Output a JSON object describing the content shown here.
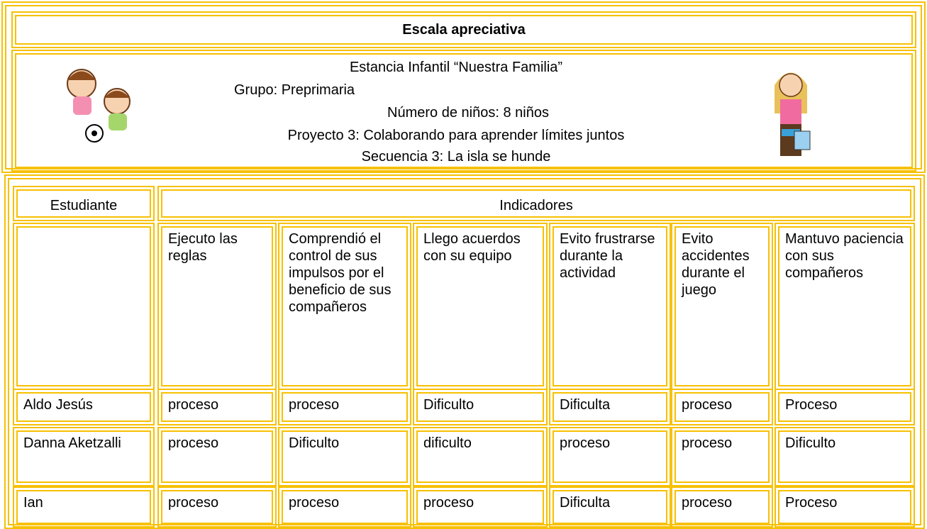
{
  "header": {
    "title": "Escala apreciativa",
    "lines": [
      "Estancia Infantil “Nuestra Familia”",
      "Grupo: Preprimaria",
      "Número de niños: 8 niños",
      "Proyecto 3: Colaborando para aprender límites juntos",
      "Secuencia 3: La isla se hunde"
    ]
  },
  "table": {
    "student_header": "Estudiante",
    "indicators_header": "Indicadores",
    "indicators": [
      "Ejecuto las reglas",
      "Comprendió el control de sus impulsos por el beneficio de sus compañeros",
      "Llego acuerdos con su equipo",
      "Evito frustrarse durante la actividad",
      "Evito accidentes durante el juego",
      "Mantuvo paciencia con sus compañeros"
    ],
    "rows": [
      [
        "Aldo Jesús",
        "proceso",
        "proceso",
        "Dificulto",
        "Dificulta",
        "proceso",
        "Proceso"
      ],
      [
        "Danna Aketzalli",
        "proceso",
        "Dificulto",
        "dificulto",
        "proceso",
        "proceso",
        "Dificulto"
      ],
      [
        "Ian",
        "proceso",
        "proceso",
        "proceso",
        "Dificulta",
        "proceso",
        "Proceso"
      ]
    ]
  }
}
